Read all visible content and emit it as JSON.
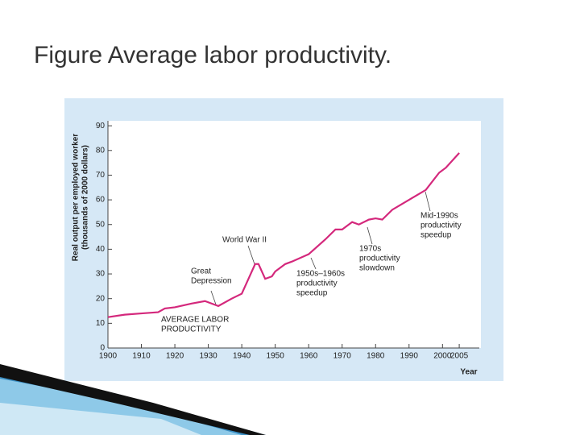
{
  "chart_data": {
    "type": "line",
    "title": "Figure Average labor productivity.",
    "y_label": [
      "Real output per employed worker",
      "(thousands of 2000 dollars)"
    ],
    "x_label": "Year",
    "xlim": [
      1900,
      2011
    ],
    "xticks": [
      1900,
      1910,
      1920,
      1930,
      1940,
      1950,
      1960,
      1970,
      1980,
      1990,
      2000,
      2005
    ],
    "ylim": [
      0,
      92
    ],
    "yticks": [
      0,
      10,
      20,
      30,
      40,
      50,
      60,
      70,
      80,
      90
    ],
    "series": [
      {
        "name": "AVERAGE LABOR PRODUCTIVITY",
        "color": "#d4287c",
        "x": [
          1900,
          1905,
          1910,
          1915,
          1917,
          1920,
          1925,
          1929,
          1933,
          1937,
          1940,
          1942,
          1944,
          1945,
          1947,
          1949,
          1950,
          1953,
          1955,
          1960,
          1965,
          1968,
          1970,
          1973,
          1975,
          1978,
          1980,
          1982,
          1985,
          1990,
          1995,
          1999,
          2001,
          2005
        ],
        "values": [
          12.5,
          13.5,
          14,
          14.5,
          16,
          16.5,
          18,
          19,
          17,
          20,
          22,
          28,
          34,
          34,
          28,
          29,
          31,
          34,
          35,
          38,
          44,
          48,
          48,
          51,
          50,
          52,
          52.5,
          52,
          56,
          60,
          64,
          71,
          73,
          79
        ]
      }
    ],
    "annotations": [
      {
        "lines": [
          "AVERAGE LABOR",
          "PRODUCTIVITY"
        ]
      },
      {
        "lines": [
          "Great",
          "Depression"
        ]
      },
      {
        "lines": [
          "World War II"
        ]
      },
      {
        "lines": [
          "1950s–1960s",
          "productivity",
          "speedup"
        ]
      },
      {
        "lines": [
          "1970s",
          "productivity",
          "slowdown"
        ]
      },
      {
        "lines": [
          "Mid-1990s",
          "productivity",
          "speedup"
        ]
      }
    ]
  }
}
